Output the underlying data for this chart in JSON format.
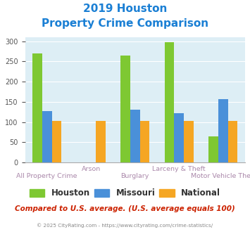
{
  "title_line1": "2019 Houston",
  "title_line2": "Property Crime Comparison",
  "title_color": "#1a7fd4",
  "categories": [
    "All Property Crime",
    "Arson",
    "Burglary",
    "Larceny & Theft",
    "Motor Vehicle Theft"
  ],
  "series": {
    "Houston": [
      270,
      null,
      265,
      298,
      65
    ],
    "Missouri": [
      127,
      null,
      130,
      122,
      157
    ],
    "National": [
      102,
      103,
      102,
      102,
      102
    ]
  },
  "colors": {
    "Houston": "#7ec832",
    "Missouri": "#4a90d9",
    "National": "#f5a623"
  },
  "ylim": [
    0,
    310
  ],
  "yticks": [
    0,
    50,
    100,
    150,
    200,
    250,
    300
  ],
  "plot_bg": "#ddeef5",
  "fig_bg": "#ffffff",
  "legend_labels": [
    "Houston",
    "Missouri",
    "National"
  ],
  "footer_text": "© 2025 CityRating.com - https://www.cityrating.com/crime-statistics/",
  "note_text": "Compared to U.S. average. (U.S. average equals 100)",
  "note_color": "#cc2200",
  "footer_color": "#888888",
  "xlabel_upper_color": "#aa88aa",
  "xlabel_lower_color": "#aa88aa",
  "bar_width": 0.22
}
